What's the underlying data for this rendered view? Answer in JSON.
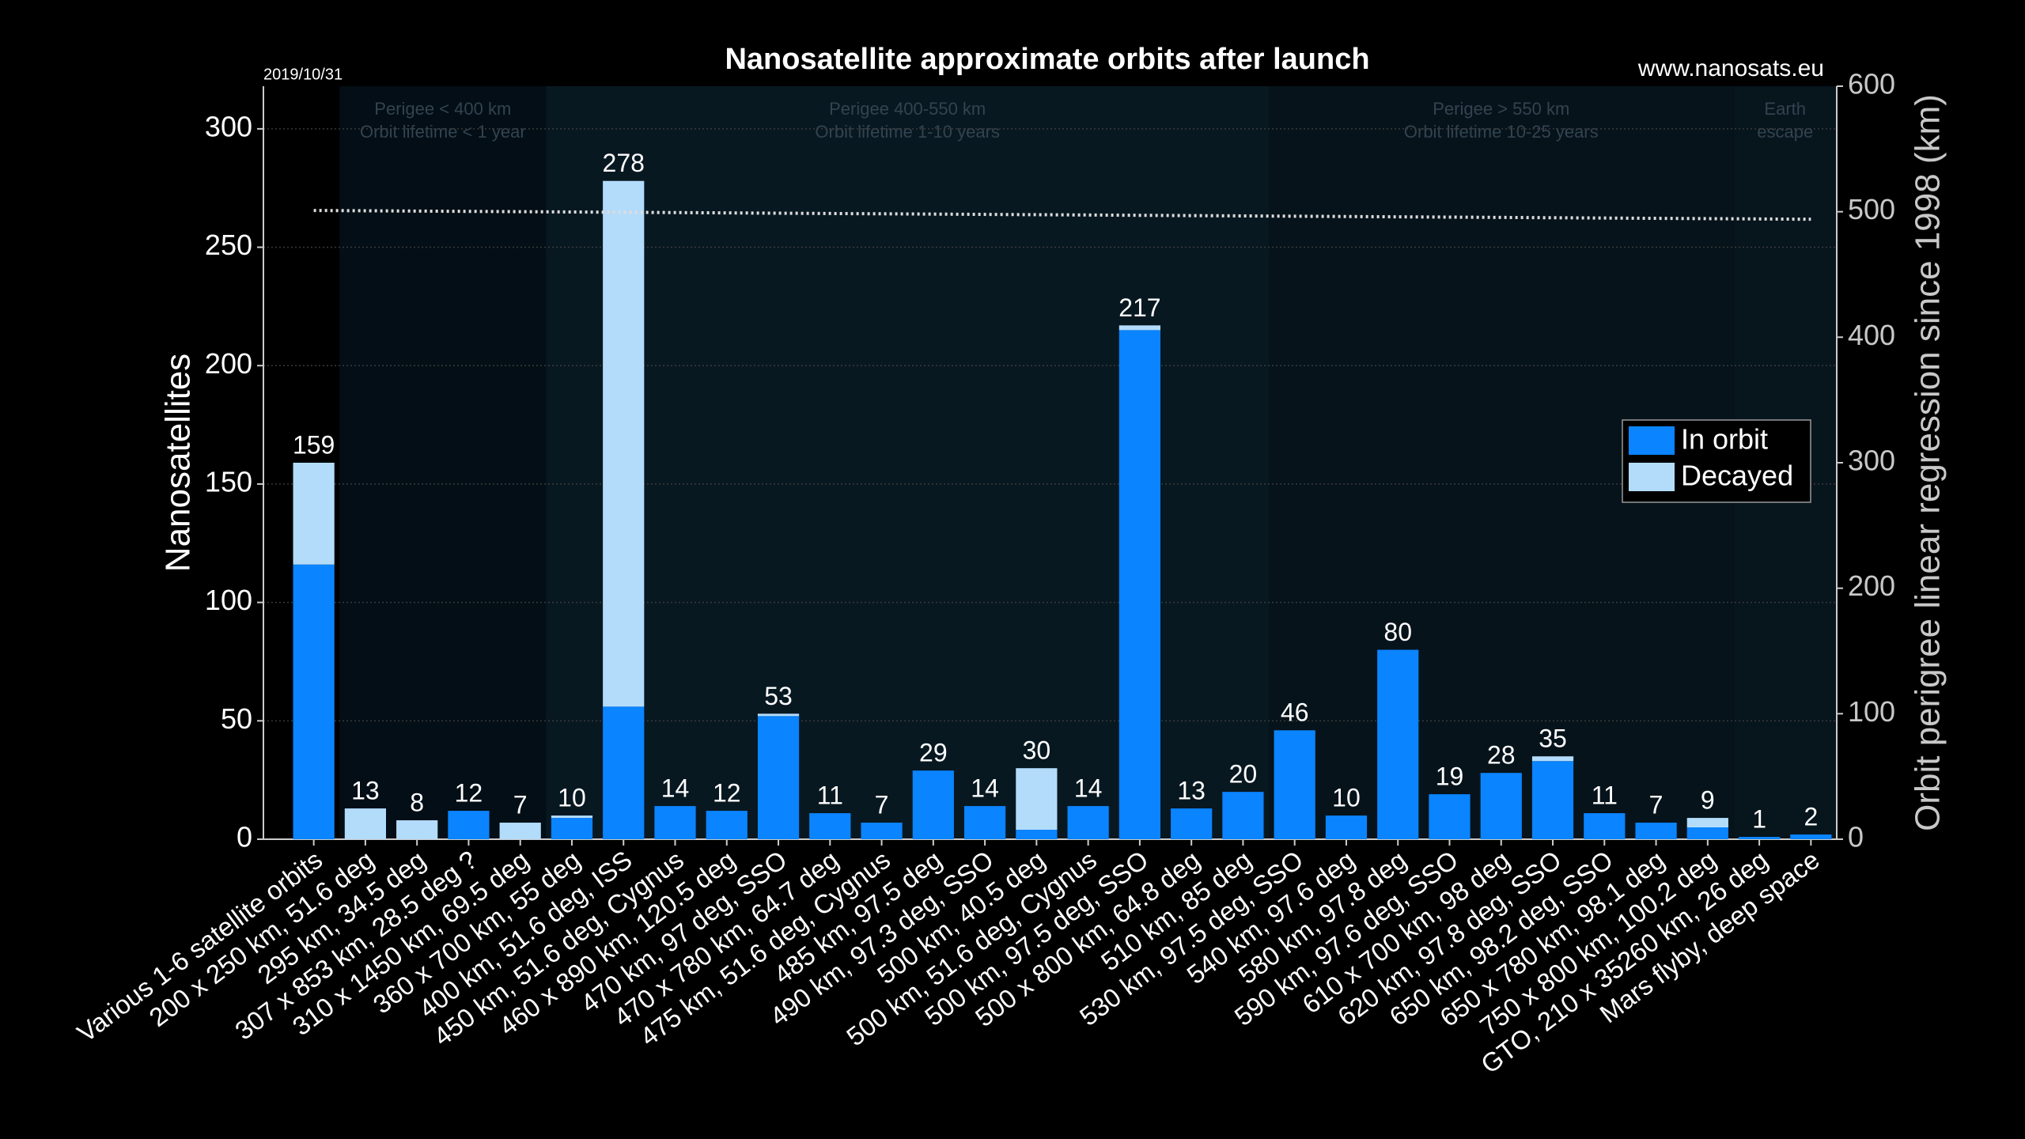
{
  "chart_data": {
    "type": "bar",
    "stacked": true,
    "title": "Nanosatellite approximate orbits after launch",
    "date_note": "2019/10/31",
    "source_note": "www.nanosats.eu",
    "y_label": "Nanosatellites",
    "y2_label": "Orbit perigree linear regression since 1998 (km)",
    "categories": [
      "Various 1-6 satellite orbits",
      "200 x 250 km, 51.6 deg",
      "295 km, 34.5 deg",
      "307 x 853 km, 28.5 deg ?",
      "310 x 1450 km, 69.5 deg",
      "360 x 700 km, 55 deg",
      "400 km, 51.6 deg, ISS",
      "450 km, 51.6 deg, Cygnus",
      "460 x 890 km, 120.5 deg",
      "470 km, 97 deg, SSO",
      "470 x 780 km, 64.7 deg",
      "475 km, 51.6 deg, Cygnus",
      "485 km, 97.5 deg",
      "490 km, 97.3 deg, SSO",
      "500 km, 40.5 deg",
      "500 km, 51.6 deg, Cygnus",
      "500 km, 97.5 deg, SSO",
      "500 x 800 km, 64.8 deg",
      "510 km, 85 deg",
      "530 km, 97.5 deg, SSO",
      "540 km, 97.6 deg",
      "580 km, 97.8 deg",
      "590 km, 97.6 deg, SSO",
      "610 x 700 km, 98 deg",
      "620 km, 97.8 deg, SSO",
      "650 km, 98.2 deg, SSO",
      "650 x 780 km, 98.1 deg",
      "750 x 800 km, 100.2 deg",
      "GTO, 210 x 35260 km, 26 deg",
      "Mars flyby, deep space"
    ],
    "series": [
      {
        "name": "In orbit",
        "color": "#0a84ff",
        "values": [
          116,
          0,
          0,
          12,
          0,
          9,
          56,
          14,
          12,
          52,
          11,
          7,
          29,
          14,
          4,
          14,
          215,
          13,
          20,
          46,
          10,
          80,
          19,
          28,
          33,
          11,
          7,
          5,
          1,
          2
        ]
      },
      {
        "name": "Decayed",
        "color": "#b3dcfb",
        "values": [
          43,
          13,
          8,
          0,
          7,
          1,
          222,
          0,
          0,
          1,
          0,
          0,
          0,
          0,
          26,
          0,
          2,
          0,
          0,
          0,
          0,
          0,
          0,
          0,
          2,
          0,
          0,
          4,
          0,
          0
        ]
      }
    ],
    "totals": [
      159,
      13,
      8,
      12,
      7,
      10,
      278,
      14,
      12,
      53,
      11,
      7,
      29,
      14,
      30,
      14,
      217,
      13,
      20,
      46,
      10,
      80,
      19,
      28,
      35,
      11,
      7,
      9,
      1,
      2
    ],
    "trend": {
      "axis": "y2",
      "values": [
        501,
        494
      ]
    },
    "zones": [
      {
        "lines": [
          "Perigee < 400 km",
          "Orbit lifetime < 1 year"
        ]
      },
      {
        "lines": [
          "Perigee 400-550 km",
          "Orbit lifetime 1-10 years"
        ]
      },
      {
        "lines": [
          "Perigee > 550 km",
          "Orbit lifetime 10-25 years"
        ]
      },
      {
        "lines": [
          "Earth",
          "escape"
        ]
      }
    ],
    "ylim": [
      0,
      318
    ],
    "yticks": [
      0,
      50,
      100,
      150,
      200,
      250,
      300
    ],
    "y2lim": [
      0,
      600
    ],
    "y2ticks": [
      0,
      100,
      200,
      300,
      400,
      500,
      600
    ],
    "grid": true,
    "legend": "right"
  }
}
